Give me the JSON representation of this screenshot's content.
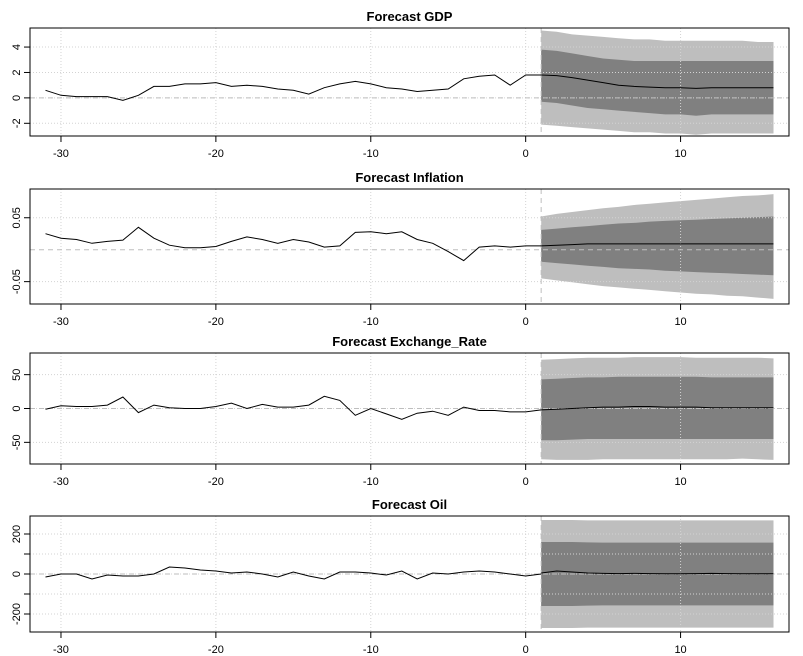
{
  "chart_data": [
    {
      "type": "line",
      "title": "Forecast GDP",
      "xlabel": "",
      "ylabel": "",
      "xlim": [
        -32,
        17
      ],
      "ylim": [
        -3,
        5.5
      ],
      "xticks": [
        -30,
        -20,
        -10,
        0,
        10
      ],
      "yticks": [
        -2,
        0,
        2,
        4
      ],
      "ytick_labels": [
        "-2",
        "0",
        "2",
        "4"
      ],
      "hline": 0,
      "vline": 1,
      "grid": true,
      "history": {
        "x": [
          -31,
          -30,
          -29,
          -28,
          -27,
          -26,
          -25,
          -24,
          -23,
          -22,
          -21,
          -20,
          -19,
          -18,
          -17,
          -16,
          -15,
          -14,
          -13,
          -12,
          -11,
          -10,
          -9,
          -8,
          -7,
          -6,
          -5,
          -4,
          -3,
          -2,
          -1,
          0,
          1
        ],
        "y": [
          0.6,
          0.2,
          0.1,
          0.1,
          0.1,
          -0.2,
          0.2,
          0.9,
          0.9,
          1.1,
          1.1,
          1.2,
          0.9,
          1.0,
          0.9,
          0.7,
          0.6,
          0.3,
          0.8,
          1.1,
          1.3,
          1.1,
          0.8,
          0.7,
          0.5,
          0.6,
          0.7,
          1.5,
          1.7,
          1.8,
          1.0,
          1.8,
          1.8
        ]
      },
      "forecast": {
        "x": [
          1,
          2,
          3,
          4,
          5,
          6,
          7,
          8,
          9,
          10,
          11,
          12,
          13,
          14,
          15,
          16
        ],
        "mean": [
          1.8,
          1.75,
          1.6,
          1.4,
          1.2,
          1.0,
          0.9,
          0.85,
          0.8,
          0.8,
          0.75,
          0.8,
          0.8,
          0.8,
          0.8,
          0.8
        ],
        "lower80": [
          -0.3,
          -0.4,
          -0.6,
          -0.8,
          -0.9,
          -1.0,
          -1.1,
          -1.2,
          -1.3,
          -1.3,
          -1.4,
          -1.3,
          -1.3,
          -1.3,
          -1.3,
          -1.3
        ],
        "upper80": [
          3.8,
          3.7,
          3.5,
          3.3,
          3.1,
          3.0,
          2.9,
          2.9,
          2.9,
          2.9,
          2.9,
          2.9,
          2.9,
          2.9,
          2.9,
          2.9
        ],
        "lower95": [
          -2.1,
          -2.2,
          -2.3,
          -2.4,
          -2.5,
          -2.6,
          -2.7,
          -2.7,
          -2.8,
          -2.8,
          -2.9,
          -2.8,
          -2.8,
          -2.8,
          -2.8,
          -2.8
        ],
        "upper95": [
          5.3,
          5.2,
          5.0,
          4.9,
          4.8,
          4.7,
          4.6,
          4.6,
          4.5,
          4.5,
          4.5,
          4.5,
          4.5,
          4.5,
          4.4,
          4.4
        ]
      }
    },
    {
      "type": "line",
      "title": "Forecast Inflation",
      "xlabel": "",
      "ylabel": "",
      "xlim": [
        -32,
        17
      ],
      "ylim": [
        -0.085,
        0.095
      ],
      "xticks": [
        -30,
        -20,
        -10,
        0,
        10
      ],
      "yticks": [
        -0.05,
        0.05
      ],
      "ytick_labels": [
        "-0.05",
        "0.05"
      ],
      "hline": 0,
      "vline": 1,
      "grid": true,
      "history": {
        "x": [
          -31,
          -30,
          -29,
          -28,
          -27,
          -26,
          -25,
          -24,
          -23,
          -22,
          -21,
          -20,
          -19,
          -18,
          -17,
          -16,
          -15,
          -14,
          -13,
          -12,
          -11,
          -10,
          -9,
          -8,
          -7,
          -6,
          -5,
          -4,
          -3,
          -2,
          -1,
          0,
          1
        ],
        "y": [
          0.025,
          0.018,
          0.016,
          0.01,
          0.013,
          0.015,
          0.035,
          0.018,
          0.007,
          0.003,
          0.003,
          0.005,
          0.013,
          0.02,
          0.016,
          0.01,
          0.016,
          0.012,
          0.004,
          0.006,
          0.027,
          0.028,
          0.025,
          0.028,
          0.016,
          0.01,
          -0.003,
          -0.017,
          0.004,
          0.006,
          0.004,
          0.006,
          0.006
        ]
      },
      "forecast": {
        "x": [
          1,
          2,
          3,
          4,
          5,
          6,
          7,
          8,
          9,
          10,
          11,
          12,
          13,
          14,
          15,
          16
        ],
        "mean": [
          0.006,
          0.007,
          0.008,
          0.009,
          0.009,
          0.009,
          0.009,
          0.009,
          0.009,
          0.009,
          0.009,
          0.009,
          0.009,
          0.009,
          0.009,
          0.009
        ],
        "lower80": [
          -0.019,
          -0.021,
          -0.023,
          -0.025,
          -0.027,
          -0.029,
          -0.03,
          -0.031,
          -0.033,
          -0.034,
          -0.035,
          -0.036,
          -0.037,
          -0.038,
          -0.039,
          -0.04
        ],
        "upper80": [
          0.031,
          0.033,
          0.035,
          0.037,
          0.039,
          0.041,
          0.042,
          0.044,
          0.045,
          0.046,
          0.047,
          0.048,
          0.049,
          0.05,
          0.051,
          0.052
        ],
        "lower95": [
          -0.045,
          -0.048,
          -0.051,
          -0.054,
          -0.057,
          -0.059,
          -0.061,
          -0.063,
          -0.065,
          -0.067,
          -0.069,
          -0.07,
          -0.072,
          -0.073,
          -0.075,
          -0.077
        ],
        "upper95": [
          0.052,
          0.056,
          0.059,
          0.062,
          0.065,
          0.067,
          0.07,
          0.072,
          0.074,
          0.076,
          0.078,
          0.08,
          0.082,
          0.084,
          0.085,
          0.087
        ]
      }
    },
    {
      "type": "line",
      "title": "Forecast Exchange_Rate",
      "xlabel": "",
      "ylabel": "",
      "xlim": [
        -32,
        17
      ],
      "ylim": [
        -82,
        82
      ],
      "xticks": [
        -30,
        -20,
        -10,
        0,
        10
      ],
      "yticks": [
        -50,
        0,
        50
      ],
      "ytick_labels": [
        "-50",
        "0",
        "50"
      ],
      "hline": 0,
      "vline": 1,
      "grid": true,
      "history": {
        "x": [
          -31,
          -30,
          -29,
          -28,
          -27,
          -26,
          -25,
          -24,
          -23,
          -22,
          -21,
          -20,
          -19,
          -18,
          -17,
          -16,
          -15,
          -14,
          -13,
          -12,
          -11,
          -10,
          -9,
          -8,
          -7,
          -6,
          -5,
          -4,
          -3,
          -2,
          -1,
          0,
          1
        ],
        "y": [
          -1,
          4,
          3,
          3,
          5,
          17,
          -6,
          5,
          1,
          0,
          0,
          3,
          8,
          0,
          6,
          2,
          2,
          5,
          18,
          12,
          -10,
          0,
          -8,
          -16,
          -7,
          -4,
          -10,
          2,
          -3,
          -3,
          -5,
          -5,
          -2
        ]
      },
      "forecast": {
        "x": [
          1,
          2,
          3,
          4,
          5,
          6,
          7,
          8,
          9,
          10,
          11,
          12,
          13,
          14,
          15,
          16
        ],
        "mean": [
          -2,
          -1,
          0,
          1,
          2,
          2,
          3,
          3,
          2,
          2,
          2,
          1,
          1,
          1,
          1,
          1
        ],
        "lower80": [
          -47,
          -47,
          -46,
          -45,
          -45,
          -45,
          -45,
          -45,
          -45,
          -45,
          -45,
          -45,
          -45,
          -45,
          -45,
          -45
        ],
        "upper80": [
          43,
          44,
          45,
          46,
          46,
          47,
          47,
          47,
          47,
          47,
          47,
          46,
          46,
          46,
          46,
          46
        ],
        "lower95": [
          -75,
          -76,
          -76,
          -76,
          -75,
          -75,
          -75,
          -75,
          -75,
          -75,
          -75,
          -75,
          -75,
          -74,
          -75,
          -76
        ],
        "upper95": [
          72,
          73,
          74,
          75,
          75,
          75,
          76,
          76,
          76,
          76,
          75,
          75,
          75,
          75,
          75,
          74
        ]
      }
    },
    {
      "type": "line",
      "title": "Forecast Oil",
      "xlabel": "",
      "ylabel": "",
      "xlim": [
        -32,
        17
      ],
      "ylim": [
        -290,
        290
      ],
      "xticks": [
        -30,
        -20,
        -10,
        0,
        10
      ],
      "yticks": [
        -200,
        0,
        200
      ],
      "ytick_labels": [
        "-200",
        "0",
        "200"
      ],
      "minor_yticks": [
        -100,
        100
      ],
      "hline": 0,
      "vline": 1,
      "grid": true,
      "history": {
        "x": [
          -31,
          -30,
          -29,
          -28,
          -27,
          -26,
          -25,
          -24,
          -23,
          -22,
          -21,
          -20,
          -19,
          -18,
          -17,
          -16,
          -15,
          -14,
          -13,
          -12,
          -11,
          -10,
          -9,
          -8,
          -7,
          -6,
          -5,
          -4,
          -3,
          -2,
          -1,
          0,
          1
        ],
        "y": [
          -15,
          0,
          0,
          -25,
          -5,
          -10,
          -10,
          0,
          35,
          30,
          20,
          15,
          5,
          10,
          0,
          -15,
          10,
          -10,
          -25,
          10,
          10,
          5,
          -5,
          15,
          -25,
          5,
          0,
          10,
          15,
          10,
          0,
          -10,
          0
        ]
      },
      "forecast": {
        "x": [
          1,
          2,
          3,
          4,
          5,
          6,
          7,
          8,
          9,
          10,
          11,
          12,
          13,
          14,
          15,
          16
        ],
        "mean": [
          5,
          15,
          10,
          5,
          3,
          2,
          3,
          2,
          1,
          1,
          2,
          3,
          2,
          1,
          1,
          1
        ],
        "lower80": [
          -160,
          -160,
          -160,
          -158,
          -157,
          -157,
          -157,
          -157,
          -157,
          -157,
          -157,
          -157,
          -157,
          -157,
          -157,
          -157
        ],
        "upper80": [
          160,
          160,
          160,
          158,
          157,
          157,
          157,
          157,
          157,
          157,
          157,
          157,
          157,
          157,
          157,
          157
        ],
        "lower95": [
          -270,
          -270,
          -270,
          -268,
          -268,
          -268,
          -268,
          -268,
          -268,
          -268,
          -268,
          -268,
          -268,
          -268,
          -268,
          -268
        ],
        "upper95": [
          270,
          270,
          270,
          268,
          268,
          268,
          268,
          268,
          268,
          268,
          268,
          268,
          268,
          268,
          268,
          268
        ]
      }
    }
  ],
  "colors": {
    "band95": "#bebebe",
    "band80": "#808080",
    "line": "#000000",
    "grid": "#d3d3d3",
    "reference": "#bebebe",
    "axis": "#000000"
  }
}
